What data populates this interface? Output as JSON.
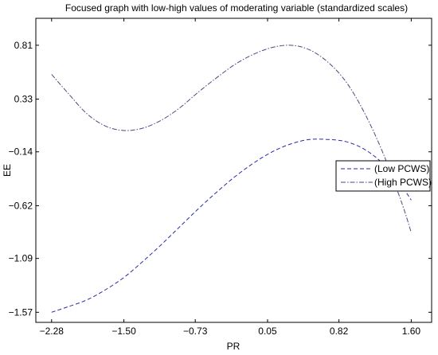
{
  "chart_data": {
    "type": "line",
    "title": "Focused graph with low-high values of moderating variable (standardized scales)",
    "xlabel": "PR",
    "ylabel": "EE",
    "xlim": [
      -2.45,
      1.82
    ],
    "ylim": [
      -1.66,
      1.05
    ],
    "x_ticks": [
      -2.28,
      -1.5,
      -0.73,
      0.05,
      0.82,
      1.6
    ],
    "x_tick_labels": [
      "−2.28",
      "−1.50",
      "−0.73",
      "0.05",
      "0.82",
      "1.60"
    ],
    "y_ticks": [
      0.81,
      0.33,
      -0.14,
      -0.62,
      -1.09,
      -1.57
    ],
    "y_tick_labels": [
      "0.81",
      "0.33",
      "−0.14",
      "−0.62",
      "−1.09",
      "−1.57"
    ],
    "grid": false,
    "legend_position": "right",
    "series": [
      {
        "name": "(Low PCWS)",
        "color": "#2a2aa8",
        "dash": "dashed",
        "x": [
          -2.28,
          -2.1,
          -1.9,
          -1.7,
          -1.5,
          -1.3,
          -1.1,
          -0.9,
          -0.7,
          -0.5,
          -0.3,
          -0.1,
          0.1,
          0.3,
          0.5,
          0.7,
          0.9,
          1.1,
          1.3,
          1.5,
          1.6
        ],
        "y": [
          -1.57,
          -1.52,
          -1.46,
          -1.37,
          -1.26,
          -1.12,
          -0.97,
          -0.81,
          -0.65,
          -0.5,
          -0.36,
          -0.24,
          -0.14,
          -0.07,
          -0.03,
          -0.03,
          -0.05,
          -0.12,
          -0.25,
          -0.45,
          -0.57
        ]
      },
      {
        "name": "(High PCWS)",
        "color": "#4a4a80",
        "dash": "dashdot",
        "x": [
          -2.28,
          -2.1,
          -1.9,
          -1.7,
          -1.5,
          -1.3,
          -1.1,
          -0.9,
          -0.7,
          -0.5,
          -0.3,
          -0.1,
          0.1,
          0.3,
          0.5,
          0.7,
          0.9,
          1.1,
          1.3,
          1.5,
          1.6
        ],
        "y": [
          0.55,
          0.38,
          0.2,
          0.09,
          0.05,
          0.07,
          0.14,
          0.25,
          0.39,
          0.52,
          0.64,
          0.73,
          0.79,
          0.81,
          0.77,
          0.66,
          0.48,
          0.2,
          -0.16,
          -0.6,
          -0.86
        ]
      }
    ]
  }
}
